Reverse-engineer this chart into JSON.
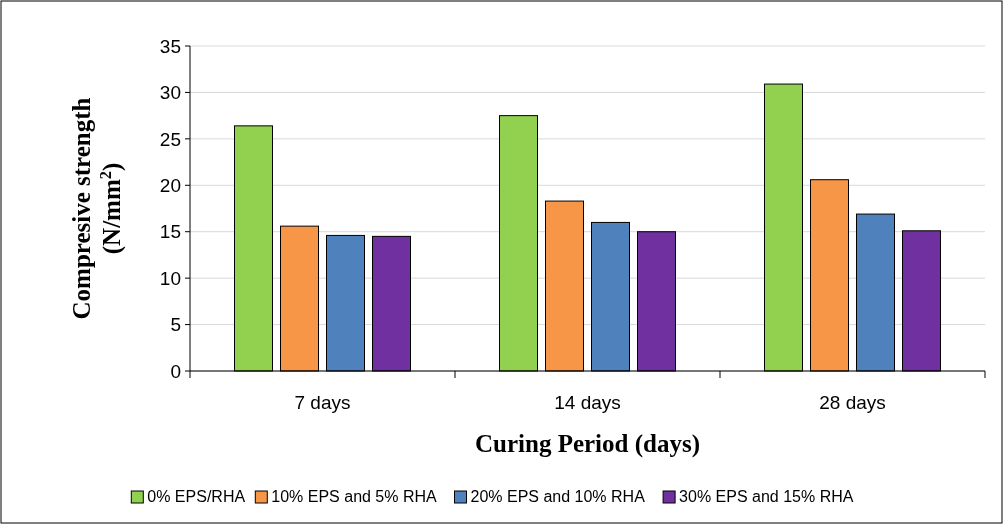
{
  "chart_data": {
    "type": "bar",
    "xlabel": "Curing Period (days)",
    "ylabel": "Compresive strength (N/mm$^{2}$)",
    "categories": [
      "7 days",
      "14 days",
      "28 days"
    ],
    "series": [
      {
        "name": "0% EPS/RHA",
        "color": "#92d050",
        "values": [
          26.4,
          27.5,
          30.9
        ]
      },
      {
        "name": "10% EPS and 5% RHA",
        "color": "#f79646",
        "values": [
          15.6,
          18.3,
          20.6
        ]
      },
      {
        "name": "20% EPS and 10% RHA",
        "color": "#4f81bd",
        "values": [
          14.6,
          16.0,
          16.9
        ]
      },
      {
        "name": "30% EPS and 15% RHA",
        "color": "#7030a0",
        "values": [
          14.5,
          15.0,
          15.1
        ]
      }
    ],
    "ylim": [
      0,
      35
    ],
    "yticks": [
      0,
      5,
      10,
      15,
      20,
      25,
      30,
      35
    ],
    "grid": "y",
    "legend": "bottom"
  }
}
